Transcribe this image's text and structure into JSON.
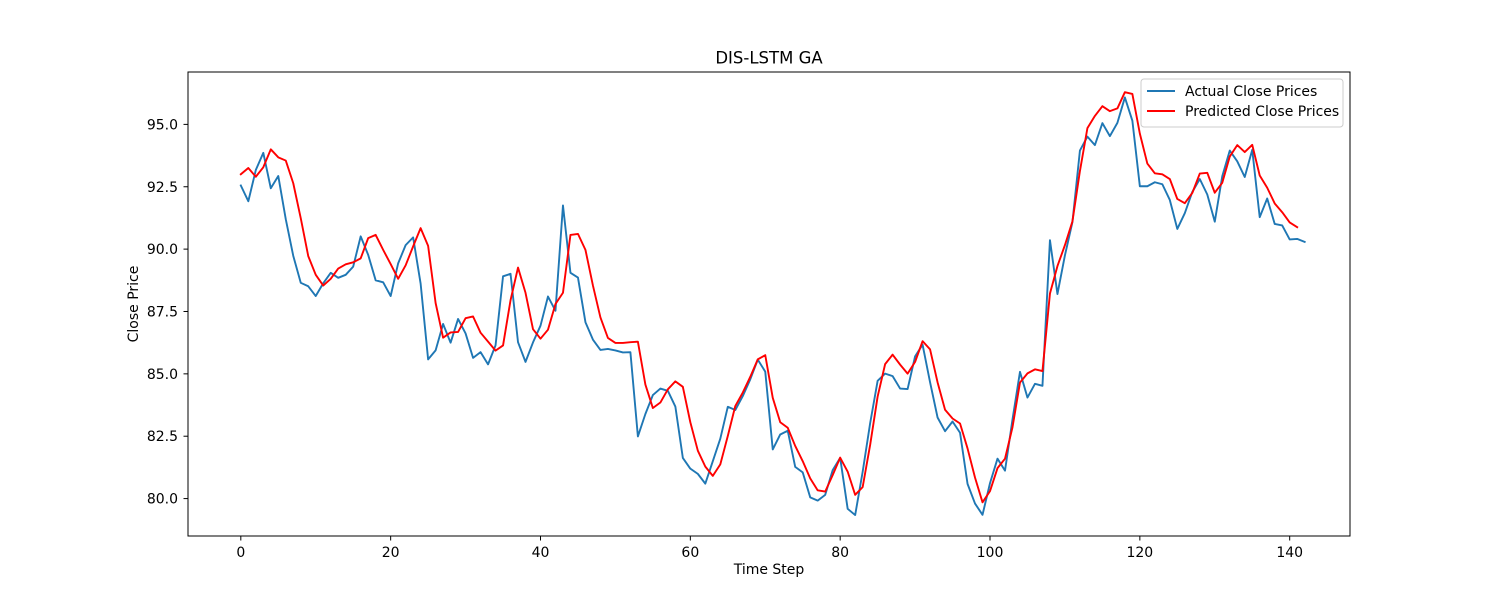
{
  "chart_data": {
    "type": "line",
    "title": "DIS-LSTM GA",
    "xlabel": "Time Step",
    "ylabel": "Close Price",
    "xlim": [
      -7.05,
      148.05
    ],
    "ylim": [
      78.5,
      97.1
    ],
    "xticks": [
      0,
      20,
      40,
      60,
      80,
      100,
      120,
      140
    ],
    "xtick_labels": [
      "0",
      "20",
      "40",
      "60",
      "80",
      "100",
      "120",
      "140"
    ],
    "yticks": [
      80.0,
      82.5,
      85.0,
      87.5,
      90.0,
      92.5,
      95.0
    ],
    "ytick_labels": [
      "80.0",
      "82.5",
      "85.0",
      "87.5",
      "90.0",
      "92.5",
      "95.0"
    ],
    "grid": false,
    "legend_position": "upper right",
    "series": [
      {
        "name": "Actual Close Prices",
        "color": "#1f77b4",
        "values": [
          92.55,
          91.92,
          93.17,
          93.86,
          92.44,
          92.93,
          91.2,
          89.73,
          88.65,
          88.51,
          88.12,
          88.63,
          89.05,
          88.85,
          88.97,
          89.3,
          90.51,
          89.77,
          88.75,
          88.67,
          88.12,
          89.43,
          90.16,
          90.47,
          88.62,
          85.58,
          85.94,
          87.0,
          86.25,
          87.2,
          86.62,
          85.64,
          85.87,
          85.38,
          86.14,
          88.91,
          89.01,
          86.27,
          85.48,
          86.26,
          86.93,
          88.1,
          87.53,
          91.75,
          89.05,
          88.86,
          87.07,
          86.37,
          85.96,
          86.0,
          85.94,
          85.86,
          85.87,
          82.49,
          83.39,
          84.15,
          84.41,
          84.32,
          83.69,
          81.63,
          81.2,
          80.99,
          80.6,
          81.5,
          82.4,
          83.68,
          83.55,
          84.11,
          84.78,
          85.57,
          85.09,
          81.97,
          82.57,
          82.72,
          81.27,
          81.05,
          80.05,
          79.92,
          80.15,
          81.14,
          81.63,
          79.59,
          79.34,
          81.07,
          83.02,
          84.72,
          85.01,
          84.91,
          84.41,
          84.39,
          85.7,
          86.17,
          84.66,
          83.25,
          82.7,
          83.09,
          82.64,
          80.59,
          79.8,
          79.35,
          80.62,
          81.6,
          81.12,
          83.17,
          85.08,
          84.05,
          84.6,
          84.52,
          90.36,
          88.2,
          89.75,
          91.08,
          93.95,
          94.51,
          94.17,
          95.05,
          94.53,
          95.06,
          96.08,
          95.15,
          92.52,
          92.52,
          92.68,
          92.6,
          91.97,
          90.81,
          91.44,
          92.29,
          92.81,
          92.19,
          91.1,
          92.92,
          93.95,
          93.52,
          92.89,
          93.98,
          91.28,
          92.03,
          91.01,
          90.95,
          90.39,
          90.41,
          90.29
        ]
      },
      {
        "name": "Predicted Close Prices",
        "color": "#ff0000",
        "values": [
          93.0,
          93.25,
          92.9,
          93.28,
          94.0,
          93.68,
          93.55,
          92.64,
          91.24,
          89.72,
          88.97,
          88.54,
          88.81,
          89.22,
          89.39,
          89.47,
          89.63,
          90.44,
          90.57,
          89.97,
          89.4,
          88.81,
          89.35,
          90.11,
          90.84,
          90.13,
          87.84,
          86.45,
          86.66,
          86.68,
          87.23,
          87.3,
          86.65,
          86.29,
          85.93,
          86.14,
          87.95,
          89.26,
          88.25,
          86.79,
          86.41,
          86.77,
          87.8,
          88.25,
          90.57,
          90.61,
          89.97,
          88.54,
          87.26,
          86.44,
          86.24,
          86.24,
          86.27,
          86.29,
          84.57,
          83.63,
          83.85,
          84.38,
          84.7,
          84.48,
          83.06,
          81.92,
          81.28,
          80.91,
          81.37,
          82.51,
          83.71,
          84.25,
          84.88,
          85.58,
          85.75,
          84.04,
          83.06,
          82.84,
          82.11,
          81.5,
          80.81,
          80.33,
          80.28,
          80.94,
          81.64,
          81.08,
          80.15,
          80.46,
          82.15,
          84.09,
          85.39,
          85.77,
          85.37,
          85.01,
          85.48,
          86.31,
          85.98,
          84.66,
          83.56,
          83.21,
          83.01,
          82.01,
          80.84,
          79.85,
          80.3,
          81.22,
          81.6,
          82.86,
          84.65,
          85.02,
          85.18,
          85.11,
          88.22,
          89.32,
          90.16,
          91.11,
          93.13,
          94.85,
          95.34,
          95.73,
          95.53,
          95.64,
          96.29,
          96.22,
          94.63,
          93.43,
          93.04,
          93.0,
          92.81,
          92.01,
          91.84,
          92.25,
          93.03,
          93.06,
          92.26,
          92.66,
          93.71,
          94.17,
          93.89,
          94.18,
          92.95,
          92.46,
          91.83,
          91.48,
          91.07,
          90.88
        ]
      }
    ]
  }
}
